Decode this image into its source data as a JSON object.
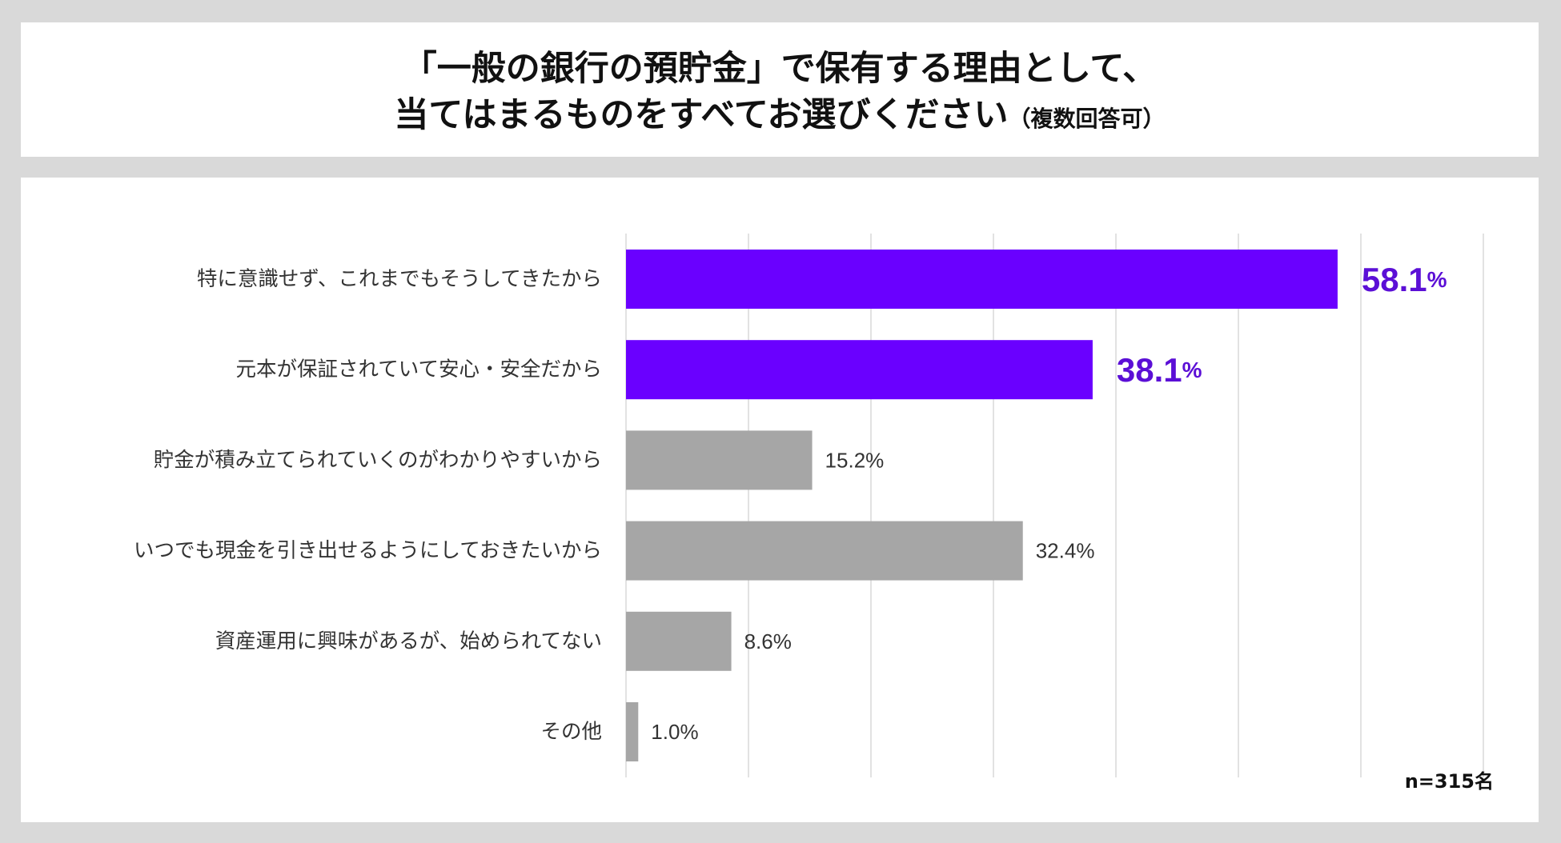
{
  "title": {
    "line1": "「一般の銀行の預貯金」で保有する理由として、",
    "line2": "当てはまるものをすべてお選びください",
    "note": "（複数回答可）"
  },
  "footnote": "n=315名",
  "colors": {
    "highlight": "#6a00ff",
    "highlight_label": "#5b0fd6",
    "normal": "#a6a6a6",
    "grid": "#d9d9d9"
  },
  "chart_data": {
    "type": "bar",
    "orientation": "horizontal",
    "categories": [
      "特に意識せず、これまでもそうしてきたから",
      "元本が保証されていて安心・安全だから",
      "貯金が積み立てられていくのがわかりやすいから",
      "いつでも現金を引き出せるようにしておきたいから",
      "資産運用に興味があるが、始められてない",
      "その他"
    ],
    "values": [
      58.1,
      38.1,
      15.2,
      32.4,
      8.6,
      1.0
    ],
    "highlighted": [
      true,
      true,
      false,
      false,
      false,
      false
    ],
    "value_suffix": "%",
    "xlim": [
      0,
      70
    ],
    "grid": true,
    "grid_step": 10
  }
}
